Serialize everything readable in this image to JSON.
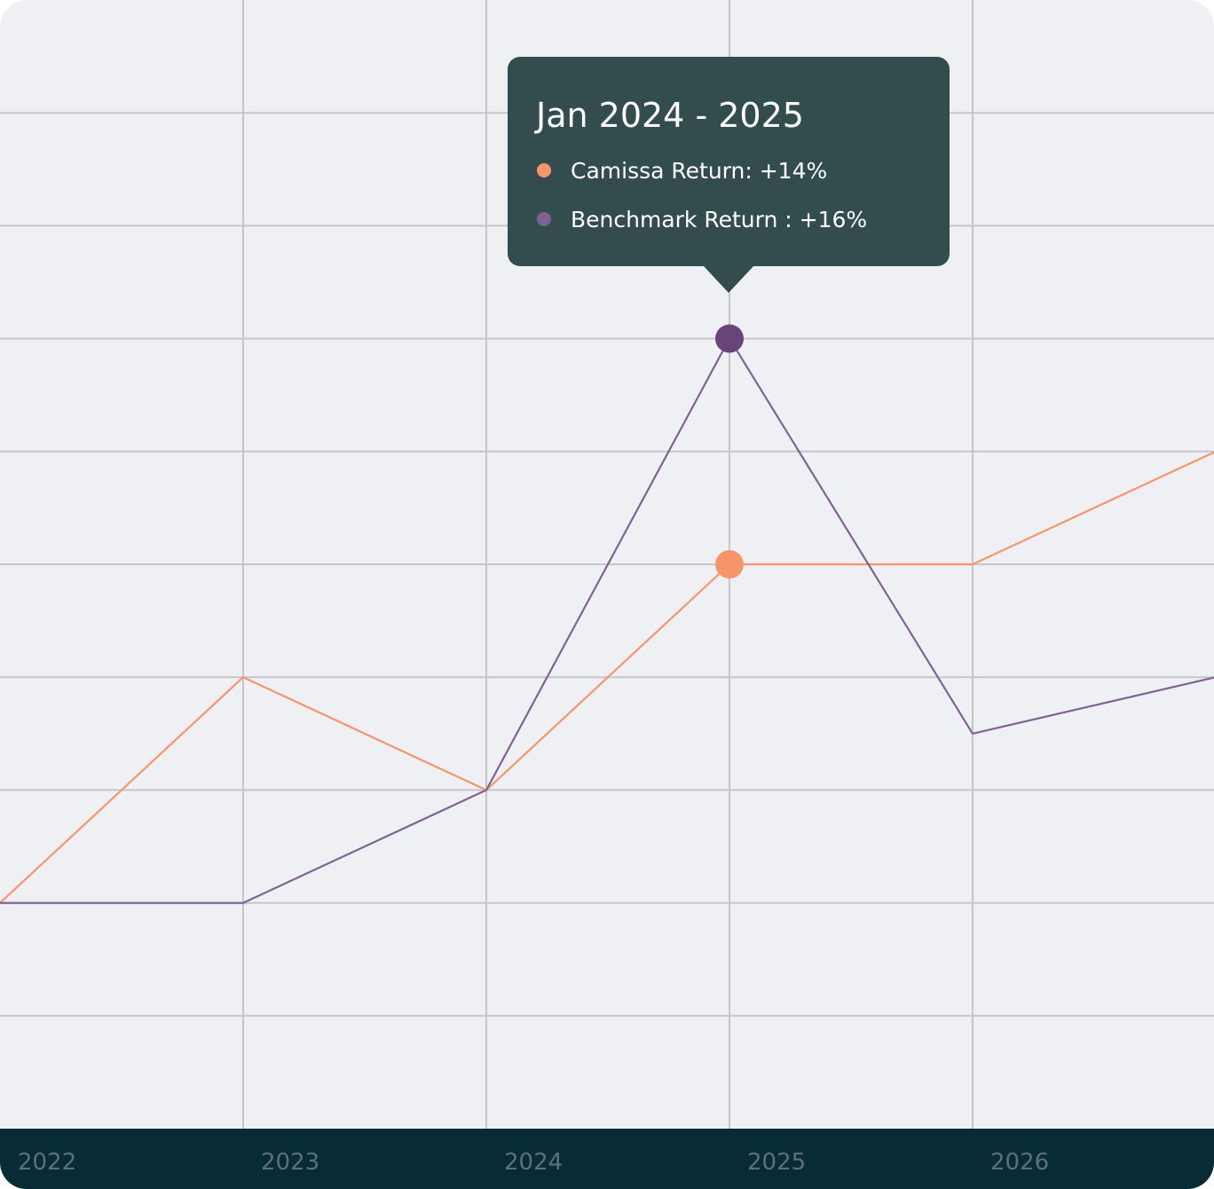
{
  "chart_data": {
    "type": "line",
    "x": [
      "2022",
      "2023",
      "2024",
      "2025",
      "2026",
      ""
    ],
    "categories": [
      "2022",
      "2023",
      "2024",
      "2025",
      "2026"
    ],
    "ylim": [
      0,
      10
    ],
    "grid": true,
    "series": [
      {
        "name": "Camissa Return",
        "color": "#f7956a",
        "values": [
          2,
          4,
          3,
          5,
          5,
          6
        ]
      },
      {
        "name": "Benchmark Return",
        "color": "#7f6393",
        "values": [
          2,
          2,
          3,
          7,
          3.5,
          4
        ]
      }
    ],
    "highlight": {
      "index": 3,
      "marker_colors": {
        "Camissa Return": "#f7956a",
        "Benchmark Return": "#684579"
      }
    },
    "tooltip": {
      "title": "Jan 2024 - 2025",
      "items": [
        {
          "label": "Camissa Return: +14%",
          "color": "#f7956a"
        },
        {
          "label": "Benchmark Return : +16%",
          "color": "#7f6393"
        }
      ]
    }
  },
  "colors": {
    "background": "#eef0f3",
    "grid": "#c4c6cb",
    "axis_bar": "#082c36",
    "tick_label": "#5b7078",
    "tooltip_bg": "#334d4e"
  }
}
